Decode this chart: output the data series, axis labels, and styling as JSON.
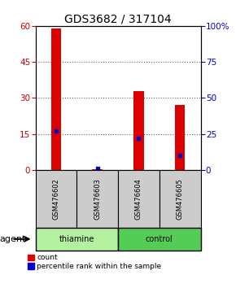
{
  "title": "GDS3682 / 317104",
  "samples": [
    "GSM476602",
    "GSM476603",
    "GSM476604",
    "GSM476605"
  ],
  "red_counts": [
    59,
    0.3,
    33,
    27
  ],
  "blue_percentiles": [
    27,
    1,
    22,
    10
  ],
  "ylim_left": [
    0,
    60
  ],
  "ylim_right": [
    0,
    100
  ],
  "yticks_left": [
    0,
    15,
    30,
    45,
    60
  ],
  "yticks_right": [
    0,
    25,
    50,
    75,
    100
  ],
  "groups": [
    {
      "label": "thiamine",
      "indices": [
        0,
        1
      ],
      "color": "#b3f0a0"
    },
    {
      "label": "control",
      "indices": [
        2,
        3
      ],
      "color": "#55cc55"
    }
  ],
  "agent_label": "agent",
  "bar_color": "#dd0000",
  "dot_color": "#0000cc",
  "bar_width": 0.25,
  "ytick_left_color": "#cc0000",
  "ytick_right_color": "#0000cc",
  "legend_count_color": "#dd0000",
  "legend_pct_color": "#0000cc",
  "sample_box_color": "#cccccc",
  "title_fontsize": 10,
  "tick_fontsize": 7.5,
  "sample_fontsize": 6,
  "agent_fontsize": 8,
  "legend_fontsize": 6.5
}
